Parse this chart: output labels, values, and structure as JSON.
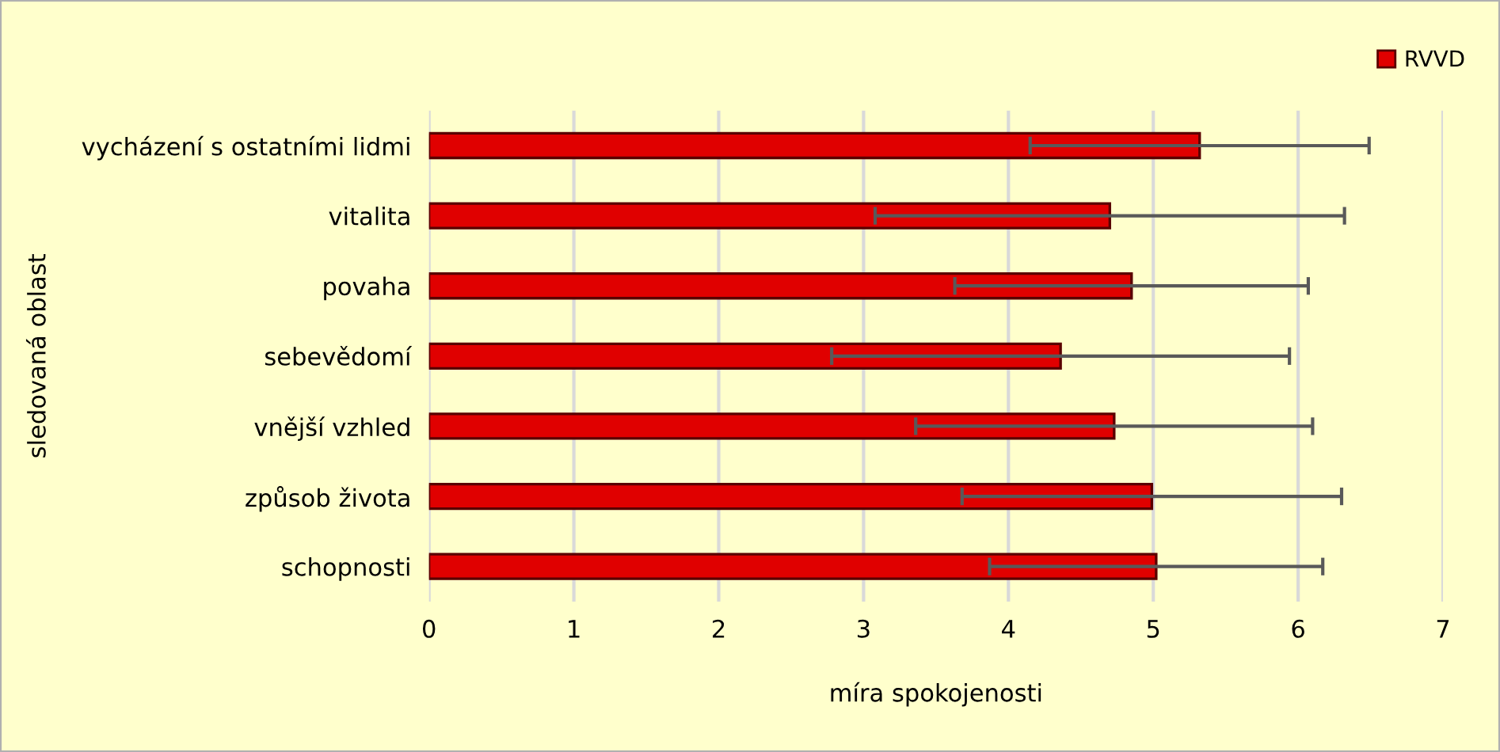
{
  "chart_data": {
    "type": "bar",
    "orientation": "horizontal",
    "xlabel": "míra spokojenosti",
    "ylabel": "sledovaná oblast",
    "categories": [
      "vycházení s ostatními lidmi",
      "vitalita",
      "povaha",
      "sebevědomí",
      "vnější vzhled",
      "způsob života",
      "schopnosti"
    ],
    "series": [
      {
        "name": "RVVD",
        "color": "#e00000",
        "values": [
          5.32,
          4.7,
          4.85,
          4.36,
          4.73,
          4.99,
          5.02
        ],
        "errors": [
          1.17,
          1.62,
          1.22,
          1.58,
          1.37,
          1.31,
          1.15
        ]
      }
    ],
    "xlim": [
      0,
      7
    ],
    "xticks": [
      0,
      1,
      2,
      3,
      4,
      5,
      6,
      7
    ],
    "grid": "x",
    "legend": "top right"
  }
}
